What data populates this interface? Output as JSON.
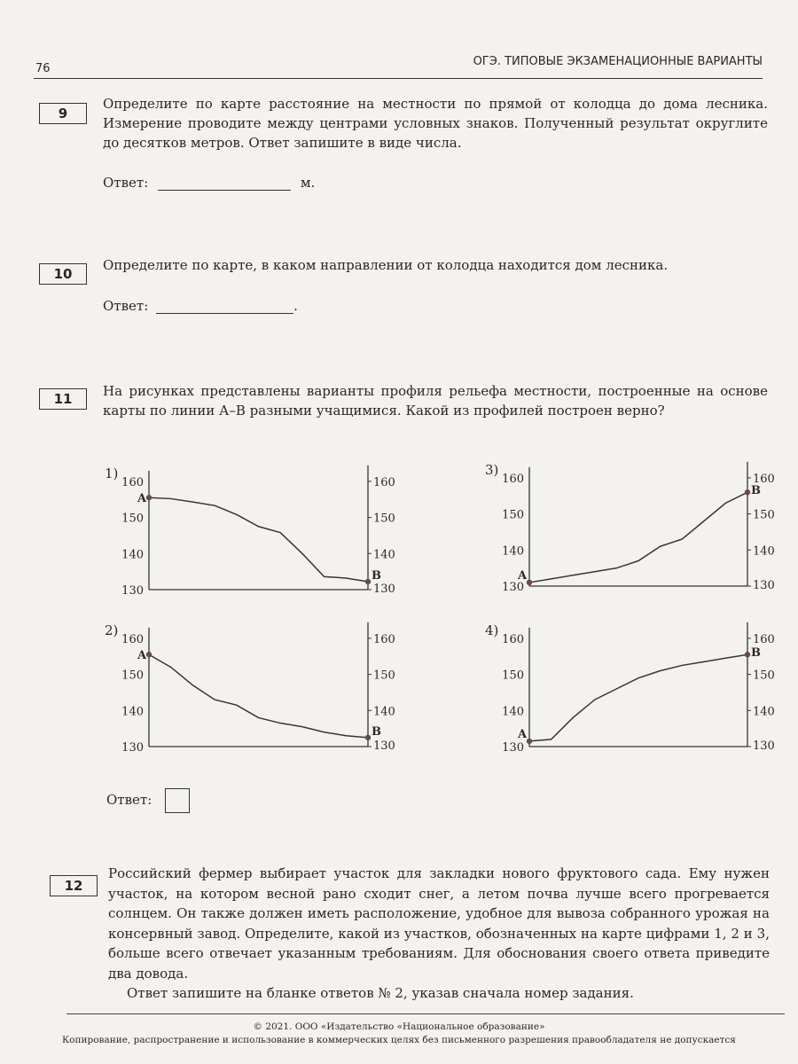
{
  "header": {
    "page_number": "76",
    "title": "ОГЭ. ТИПОВЫЕ ЭКЗАМЕНАЦИОННЫЕ ВАРИАНТЫ"
  },
  "q9": {
    "number": "9",
    "text": "Определите по карте расстояние на местности по прямой от колодца до дома лесника. Измерение проводите между центрами условных знаков. Полученный результат округлите до десятков метров. Ответ запишите в виде числа.",
    "answer_label": "Ответ:",
    "unit": "м."
  },
  "q10": {
    "number": "10",
    "text": "Определите по карте, в каком направлении от колодца находится дом лесника.",
    "answer_label": "Ответ:",
    "end": "."
  },
  "q11": {
    "number": "11",
    "text": "На рисунках представлены варианты профиля рельефа местности, построенные на основе карты по линии А–В разными учащимися. Какой из профилей построен верно?",
    "answer_label": "Ответ:"
  },
  "chart_data": [
    {
      "type": "line",
      "label": "1)",
      "ylim": [
        130,
        160
      ],
      "yticks": [
        "160",
        "150",
        "140",
        "130"
      ],
      "start_label": "A",
      "end_label": "B",
      "values": [
        155.5,
        155.2,
        154.3,
        153.3,
        150.8,
        147.5,
        145.8,
        140,
        133.6,
        133.2,
        132.2
      ]
    },
    {
      "type": "line",
      "label": "2)",
      "ylim": [
        130,
        160
      ],
      "yticks": [
        "160",
        "150",
        "140",
        "130"
      ],
      "start_label": "A",
      "end_label": "B",
      "values": [
        155.5,
        152,
        147,
        143,
        141.5,
        138,
        136.5,
        135.5,
        134,
        133,
        132.5
      ]
    },
    {
      "type": "line",
      "label": "3)",
      "ylim": [
        130,
        160
      ],
      "yticks": [
        "160",
        "150",
        "140",
        "130"
      ],
      "start_label": "A",
      "end_label": "B",
      "values": [
        131,
        132,
        133,
        134,
        135,
        137,
        141,
        143,
        148,
        153,
        156
      ]
    },
    {
      "type": "line",
      "label": "4)",
      "ylim": [
        130,
        160
      ],
      "yticks": [
        "160",
        "150",
        "140",
        "130"
      ],
      "start_label": "A",
      "end_label": "B",
      "values": [
        131.5,
        132,
        138,
        143,
        146,
        149,
        151,
        152.5,
        153.5,
        154.5,
        155.5
      ]
    }
  ],
  "q12": {
    "number": "12",
    "text": "Российский фермер выбирает участок для закладки нового фруктового сада. Ему нужен участок, на котором весной рано сходит снег, а летом почва лучше всего прогревается солнцем. Он также должен иметь расположение, удобное для вывоза собранного урожая на консервный завод. Определите, какой из участков, обозначенных на карте цифрами 1, 2 и 3, больше всего отвечает указанным требованиям. Для обоснования своего ответа приведите два довода.",
    "instruction": "Ответ запишите на бланке ответов № 2, указав сначала номер задания."
  },
  "footer": {
    "copyright": "© 2021. ООО «Издательство «Национальное образование»",
    "notice": "Копирование, распространение и использование в коммерческих целях без письменного разрешения правообладателя не допускается"
  }
}
